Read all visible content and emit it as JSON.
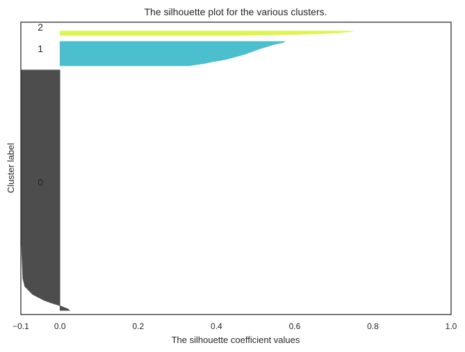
{
  "chart_data": {
    "type": "area",
    "title": "The silhouette plot for the various clusters.",
    "xlabel": "The silhouette coefficient values",
    "ylabel": "Cluster label",
    "xlim": [
      -0.1,
      1.0
    ],
    "ylim": [
      0,
      730
    ],
    "xticks": [
      -0.1,
      0.0,
      0.2,
      0.4,
      0.6,
      0.8,
      1.0
    ],
    "xtick_labels": [
      "−0.1",
      "0.0",
      "0.2",
      "0.4",
      "0.6",
      "0.8",
      "1.0"
    ],
    "grid": false,
    "clusters": [
      {
        "label": "0",
        "color": "#4d4d4d",
        "y_start": 10,
        "label_y": 330,
        "silhouette_profile": [
          [
            0,
            0.025
          ],
          [
            4,
            0.02
          ],
          [
            8,
            0.01
          ],
          [
            12,
            0.0
          ],
          [
            18,
            -0.02
          ],
          [
            25,
            -0.04
          ],
          [
            40,
            -0.07
          ],
          [
            60,
            -0.09
          ],
          [
            80,
            -0.095
          ],
          [
            200,
            -0.1
          ],
          [
            400,
            -0.1
          ],
          [
            601,
            -0.1
          ]
        ]
      },
      {
        "label": "1",
        "color": "#4bbfce",
        "y_start": 621,
        "label_y": 664,
        "silhouette_profile": [
          [
            0,
            0.33
          ],
          [
            3,
            0.35
          ],
          [
            6,
            0.37
          ],
          [
            10,
            0.39
          ],
          [
            15,
            0.42
          ],
          [
            20,
            0.44
          ],
          [
            28,
            0.47
          ],
          [
            35,
            0.49
          ],
          [
            42,
            0.51
          ],
          [
            48,
            0.53
          ],
          [
            54,
            0.55
          ],
          [
            58,
            0.57
          ],
          [
            61,
            0.575
          ]
        ]
      },
      {
        "label": "2",
        "color": "#dff44c",
        "y_start": 697,
        "label_y": 718,
        "silhouette_profile": [
          [
            0,
            0.45
          ],
          [
            2,
            0.6
          ],
          [
            4,
            0.66
          ],
          [
            6,
            0.71
          ],
          [
            8,
            0.73
          ],
          [
            11,
            0.75
          ]
        ]
      }
    ]
  }
}
